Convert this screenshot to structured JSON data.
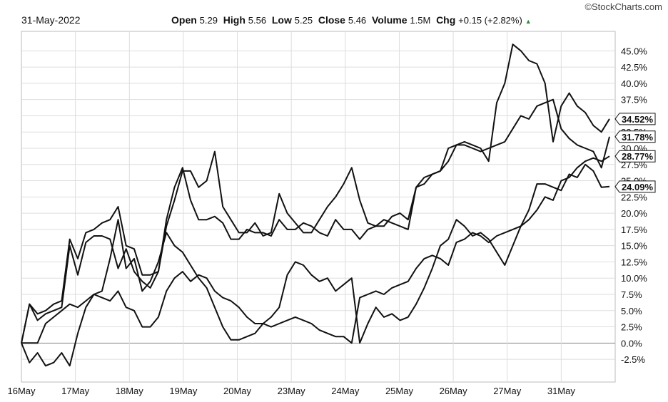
{
  "source_label": "©StockCharts.com",
  "header": {
    "date": "31-May-2022",
    "open_label": "Open",
    "open_value": "5.29",
    "high_label": "High",
    "high_value": "5.56",
    "low_label": "Low",
    "low_value": "5.25",
    "close_label": "Close",
    "close_value": "5.46",
    "volume_label": "Volume",
    "volume_value": "1.5M",
    "chg_label": "Chg",
    "chg_value": "+0.15 (+2.82%)",
    "chg_arrow": "▲",
    "chg_arrow_color": "#2e8b3a"
  },
  "chart_data": {
    "type": "line",
    "title": "",
    "xlabel": "",
    "ylabel": "",
    "ylim": [
      -6,
      48
    ],
    "y_ticks": [
      -2.5,
      0.0,
      2.5,
      5.0,
      7.5,
      10.0,
      12.5,
      15.0,
      17.5,
      20.0,
      22.5,
      25.0,
      27.5,
      30.0,
      32.5,
      35.0,
      37.5,
      40.0,
      42.5,
      45.0
    ],
    "y_tick_labels": [
      "-2.5%",
      "0.0%",
      "2.5%",
      "5.0%",
      "7.5%",
      "10.0%",
      "12.5%",
      "15.0%",
      "17.5%",
      "20.0%",
      "22.5%",
      "25.0%",
      "27.5%",
      "30.0%",
      "32.5%",
      "35.0%",
      "37.5%",
      "40.0%",
      "42.5%",
      "45.0%"
    ],
    "x_ticks": [
      "16May",
      "17May",
      "18May",
      "19May",
      "20May",
      "23May",
      "24May",
      "25May",
      "26May",
      "27May",
      "31May"
    ],
    "grid": true,
    "line_color": "#111111",
    "grid_color": "#dddddd",
    "series": [
      {
        "end_label": "34.52%",
        "values": [
          0.0,
          6.0,
          4.5,
          5.0,
          6.0,
          6.5,
          16.0,
          13.0,
          17.0,
          17.5,
          18.5,
          19.0,
          21.0,
          15.0,
          14.5,
          10.5,
          10.5,
          11.0,
          18.0,
          22.0,
          26.5,
          26.5,
          24.0,
          25.0,
          29.5,
          21.0,
          19.0,
          17.0,
          17.0,
          18.5,
          16.5,
          17.0,
          23.0,
          20.0,
          18.5,
          17.0,
          17.0,
          19.0,
          21.0,
          22.5,
          24.5,
          27.0,
          22.0,
          18.5,
          18.0,
          19.0,
          18.5,
          18.0,
          17.5,
          24.0,
          24.5,
          26.0,
          26.5,
          30.0,
          30.5,
          31.0,
          30.5,
          30.0,
          28.0,
          37.0,
          40.0,
          46.0,
          45.0,
          43.5,
          43.0,
          40.0,
          31.0,
          36.5,
          38.5,
          36.5,
          35.5,
          33.5,
          32.5,
          34.52
        ]
      },
      {
        "end_label": "31.78%",
        "values": [
          0.0,
          6.0,
          3.5,
          4.5,
          5.0,
          5.5,
          15.0,
          10.5,
          15.5,
          16.5,
          16.5,
          16.0,
          11.5,
          14.5,
          11.0,
          9.5,
          8.5,
          11.0,
          19.0,
          24.0,
          27.0,
          22.0,
          19.0,
          19.0,
          19.5,
          18.5,
          16.0,
          16.0,
          17.5,
          17.0,
          17.0,
          16.5,
          19.0,
          17.5,
          17.5,
          18.5,
          18.0,
          17.0,
          16.5,
          19.0,
          17.5,
          17.5,
          16.0,
          17.5,
          18.0,
          18.0,
          19.5,
          20.0,
          19.0,
          24.0,
          25.5,
          26.0,
          26.5,
          28.0,
          30.5,
          30.5,
          30.0,
          29.5,
          30.0,
          30.5,
          31.0,
          33.0,
          35.0,
          34.5,
          36.5,
          37.0,
          37.5,
          33.0,
          31.5,
          30.5,
          30.0,
          29.5,
          27.0,
          31.78
        ]
      },
      {
        "end_label": "28.77%",
        "values": [
          0.0,
          0.0,
          0.0,
          3.0,
          4.0,
          5.0,
          6.0,
          5.5,
          6.5,
          7.5,
          7.0,
          6.5,
          8.0,
          5.5,
          5.0,
          2.5,
          2.5,
          4.0,
          8.0,
          10.0,
          11.0,
          9.5,
          10.5,
          10.0,
          8.0,
          7.0,
          6.5,
          5.5,
          4.0,
          3.0,
          3.0,
          2.5,
          3.0,
          3.5,
          4.0,
          3.5,
          3.0,
          2.0,
          1.5,
          1.0,
          1.0,
          0.0,
          7.0,
          7.5,
          8.0,
          7.5,
          8.5,
          9.0,
          9.5,
          11.5,
          13.0,
          13.5,
          13.0,
          12.0,
          15.5,
          16.0,
          17.0,
          16.5,
          15.5,
          16.5,
          17.0,
          17.5,
          18.0,
          19.0,
          20.5,
          22.5,
          22.0,
          25.0,
          25.5,
          27.0,
          28.0,
          28.5,
          28.0,
          28.77
        ]
      },
      {
        "end_label": "24.09%",
        "values": [
          0.0,
          -3.0,
          -1.5,
          -3.5,
          -3.0,
          -1.5,
          -3.5,
          1.5,
          5.5,
          7.5,
          8.0,
          13.0,
          19.0,
          11.5,
          13.0,
          8.0,
          9.5,
          12.5,
          17.0,
          15.0,
          14.0,
          12.0,
          10.0,
          8.5,
          5.5,
          2.5,
          0.5,
          0.5,
          1.0,
          1.5,
          3.0,
          4.0,
          5.5,
          10.5,
          12.5,
          12.0,
          10.5,
          9.5,
          10.0,
          8.0,
          9.0,
          10.0,
          0.0,
          3.0,
          5.5,
          4.0,
          4.5,
          3.5,
          4.0,
          6.0,
          8.5,
          11.5,
          15.0,
          16.0,
          19.0,
          18.0,
          16.5,
          17.0,
          16.0,
          14.0,
          12.0,
          15.0,
          18.0,
          20.5,
          24.5,
          24.5,
          24.0,
          23.5,
          26.0,
          25.5,
          27.5,
          26.5,
          24.0,
          24.09
        ]
      }
    ]
  }
}
